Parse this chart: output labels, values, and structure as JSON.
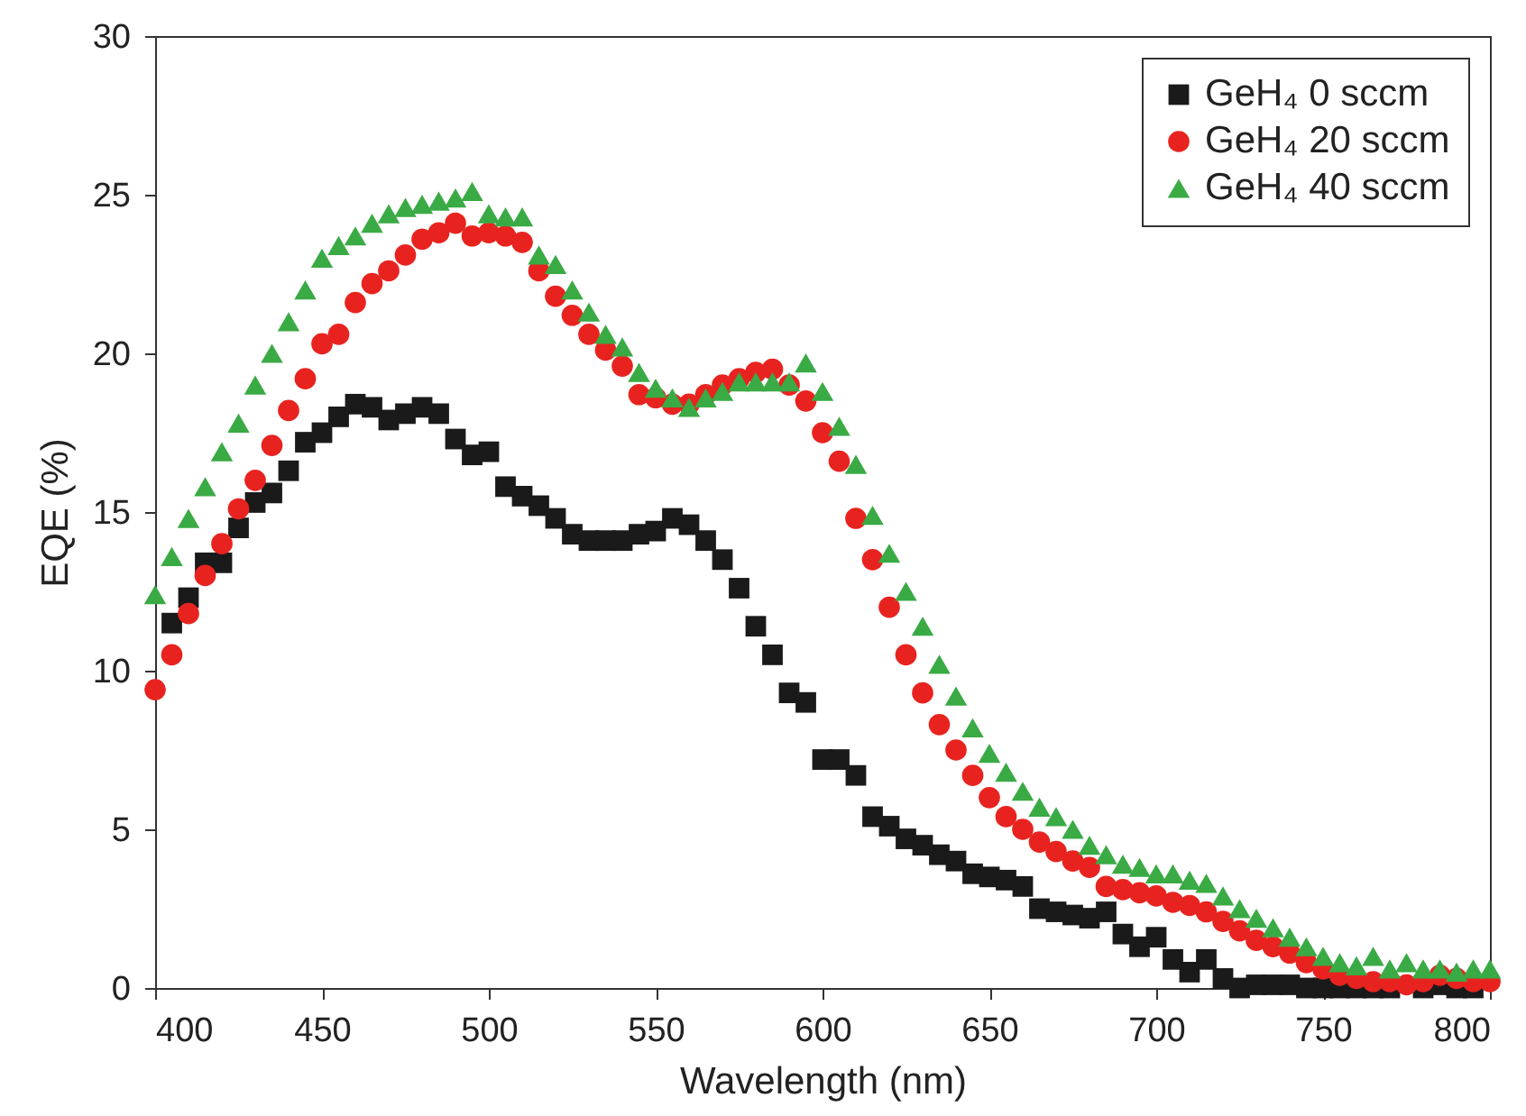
{
  "chart_data": {
    "type": "scatter",
    "xlabel": "Wavelength (nm)",
    "ylabel": "EQE (%)",
    "x": [
      400,
      405,
      410,
      415,
      420,
      425,
      430,
      435,
      440,
      445,
      450,
      455,
      460,
      465,
      470,
      475,
      480,
      485,
      490,
      495,
      500,
      505,
      510,
      515,
      520,
      525,
      530,
      535,
      540,
      545,
      550,
      555,
      560,
      565,
      570,
      575,
      580,
      585,
      590,
      595,
      600,
      605,
      610,
      615,
      620,
      625,
      630,
      635,
      640,
      645,
      650,
      655,
      660,
      665,
      670,
      675,
      680,
      685,
      690,
      695,
      700,
      705,
      710,
      715,
      720,
      725,
      730,
      735,
      740,
      745,
      750,
      755,
      760,
      765,
      770,
      775,
      780,
      785,
      790,
      795,
      800
    ],
    "series": [
      {
        "name": "GeH₄ 0 sccm",
        "color": "#1a1a1a",
        "marker": "square",
        "values": [
          null,
          11.5,
          12.3,
          13.4,
          13.4,
          14.5,
          15.3,
          15.6,
          16.3,
          17.2,
          17.5,
          18.0,
          18.4,
          18.3,
          17.9,
          18.1,
          18.3,
          18.1,
          17.3,
          16.8,
          16.9,
          15.8,
          15.5,
          15.2,
          14.8,
          14.3,
          14.1,
          14.1,
          14.1,
          14.3,
          14.4,
          14.8,
          14.6,
          14.1,
          13.5,
          12.6,
          11.4,
          10.5,
          9.3,
          9.0,
          7.2,
          7.2,
          6.7,
          5.4,
          5.1,
          4.7,
          4.5,
          4.2,
          4.0,
          3.6,
          3.5,
          3.4,
          3.2,
          2.5,
          2.4,
          2.3,
          2.2,
          2.4,
          1.7,
          1.3,
          1.6,
          0.9,
          0.5,
          0.9,
          0.3,
          0.0,
          0.1,
          0.1,
          0.1,
          0.0,
          0.0,
          0.0,
          0.0,
          0.0,
          0.0,
          null,
          0.0,
          0.1,
          0.0,
          0.0,
          null
        ]
      },
      {
        "name": "GeH₄ 20 sccm",
        "color": "#e8231f",
        "marker": "circle",
        "values": [
          9.4,
          10.5,
          11.8,
          13.0,
          14.0,
          15.1,
          16.0,
          17.1,
          18.2,
          19.2,
          20.3,
          20.6,
          21.6,
          22.2,
          22.6,
          23.1,
          23.6,
          23.8,
          24.1,
          23.7,
          23.8,
          23.7,
          23.5,
          22.6,
          21.8,
          21.2,
          20.6,
          20.1,
          19.6,
          18.7,
          18.6,
          18.4,
          18.4,
          18.7,
          19.0,
          19.2,
          19.4,
          19.5,
          19.0,
          18.5,
          17.5,
          16.6,
          14.8,
          13.5,
          12.0,
          10.5,
          9.3,
          8.3,
          7.5,
          6.7,
          6.0,
          5.4,
          5.0,
          4.6,
          4.3,
          4.0,
          3.8,
          3.2,
          3.1,
          3.0,
          2.9,
          2.7,
          2.6,
          2.4,
          2.1,
          1.8,
          1.5,
          1.3,
          1.1,
          0.8,
          0.6,
          0.4,
          0.3,
          0.2,
          0.2,
          0.1,
          0.2,
          0.4,
          0.3,
          0.2,
          0.2
        ]
      },
      {
        "name": "GeH₄ 40 sccm",
        "color": "#3aaa45",
        "marker": "triangle",
        "values": [
          12.4,
          13.6,
          14.8,
          15.8,
          16.9,
          17.8,
          19.0,
          20.0,
          21.0,
          22.0,
          23.0,
          23.4,
          23.7,
          24.1,
          24.4,
          24.6,
          24.7,
          24.8,
          24.9,
          25.1,
          24.4,
          24.3,
          24.3,
          23.1,
          22.8,
          22.0,
          21.3,
          20.6,
          20.2,
          19.4,
          18.9,
          18.6,
          18.3,
          18.6,
          18.8,
          19.1,
          19.1,
          19.1,
          19.1,
          19.7,
          18.8,
          17.7,
          16.5,
          14.9,
          13.7,
          12.5,
          11.4,
          10.2,
          9.2,
          8.2,
          7.4,
          6.8,
          6.2,
          5.7,
          5.4,
          5.0,
          4.5,
          4.2,
          3.9,
          3.8,
          3.6,
          3.6,
          3.4,
          3.3,
          2.9,
          2.5,
          2.2,
          1.9,
          1.6,
          1.3,
          1.0,
          0.8,
          0.7,
          1.0,
          0.6,
          0.8,
          0.6,
          0.6,
          0.5,
          0.6,
          0.6
        ]
      }
    ],
    "xlim": [
      400,
      800
    ],
    "xticks": [
      400,
      450,
      500,
      550,
      600,
      650,
      700,
      750,
      800
    ],
    "ylim": [
      0,
      30
    ],
    "yticks": [
      0,
      5,
      10,
      15,
      20,
      25,
      30
    ],
    "grid": false,
    "legend": "top right"
  }
}
